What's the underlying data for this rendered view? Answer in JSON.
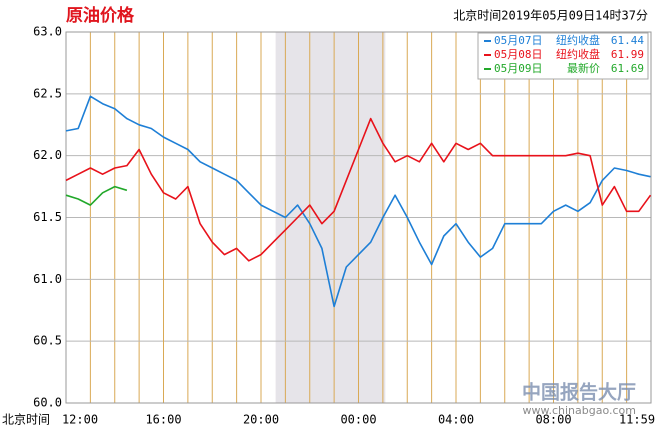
{
  "chart_data": {
    "type": "line",
    "title": "原油价格",
    "subtitle": "北京时间2019年05月09日14时37分",
    "x_axis_label": "北京时间",
    "watermark": "中国报告大厅",
    "watermark_url": "www.chinabgao.com",
    "x": [
      0,
      0.5,
      1,
      1.5,
      2,
      2.5,
      3,
      3.5,
      4,
      4.5,
      5,
      5.5,
      6,
      6.5,
      7,
      7.5,
      8,
      8.5,
      9,
      9.5,
      10,
      10.5,
      11,
      11.5,
      12,
      12.5,
      13,
      13.5,
      14,
      14.5,
      15,
      15.5,
      16,
      16.5,
      17,
      17.5,
      18,
      18.5,
      19,
      19.5,
      20,
      20.5,
      21,
      21.5,
      22,
      22.5,
      23,
      23.5,
      23.98
    ],
    "series": [
      {
        "name": "05月07日",
        "legend_label": "纽约收盘",
        "legend_value": 61.44,
        "color": "#1e7fd6",
        "values": [
          62.2,
          62.22,
          62.48,
          62.42,
          62.38,
          62.3,
          62.25,
          62.22,
          62.15,
          62.1,
          62.05,
          61.95,
          61.9,
          61.85,
          61.8,
          61.7,
          61.6,
          61.55,
          61.5,
          61.6,
          61.45,
          61.25,
          60.78,
          61.1,
          61.2,
          61.3,
          61.5,
          61.68,
          61.5,
          61.3,
          61.12,
          61.35,
          61.45,
          61.3,
          61.18,
          61.25,
          61.45,
          61.45,
          61.45,
          61.45,
          61.55,
          61.6,
          61.55,
          61.62,
          61.8,
          61.9,
          61.88,
          61.85,
          61.83
        ]
      },
      {
        "name": "05月08日",
        "legend_label": "纽约收盘",
        "legend_value": 61.99,
        "color": "#e8121b",
        "values": [
          61.8,
          61.85,
          61.9,
          61.85,
          61.9,
          61.92,
          62.05,
          61.85,
          61.7,
          61.65,
          61.75,
          61.45,
          61.3,
          61.2,
          61.25,
          61.15,
          61.2,
          61.3,
          61.4,
          61.5,
          61.6,
          61.45,
          61.55,
          61.8,
          62.05,
          62.3,
          62.1,
          61.95,
          62.0,
          61.95,
          62.1,
          61.95,
          62.1,
          62.05,
          62.1,
          62.0,
          62.0,
          62.0,
          62.0,
          62.0,
          62.0,
          62.0,
          62.02,
          62.0,
          61.6,
          61.75,
          61.55,
          61.55,
          61.68
        ]
      },
      {
        "name": "05月09日",
        "legend_label": "最新价",
        "legend_value": 61.69,
        "color": "#22a82a",
        "values": [
          61.68,
          61.65,
          61.6,
          61.7,
          61.75,
          61.72,
          null,
          null,
          null,
          null,
          null,
          null,
          null,
          null,
          null,
          null,
          null,
          null,
          null,
          null,
          null,
          null,
          null,
          null,
          null,
          null,
          null,
          null,
          null,
          null,
          null,
          null,
          null,
          null,
          null,
          null,
          null,
          null,
          null,
          null,
          null,
          null,
          null,
          null,
          null,
          null,
          null,
          null,
          null
        ]
      }
    ],
    "xlim": [
      0,
      24
    ],
    "xticks": [
      {
        "value": 0,
        "label": "12:00"
      },
      {
        "value": 4,
        "label": "16:00"
      },
      {
        "value": 8,
        "label": "20:00"
      },
      {
        "value": 12,
        "label": "00:00"
      },
      {
        "value": 16,
        "label": "04:00"
      },
      {
        "value": 20,
        "label": "08:00"
      },
      {
        "value": 24,
        "label": "11:59"
      }
    ],
    "x_minor_ticks": [
      1,
      2,
      3,
      5,
      6,
      7,
      9,
      10,
      11,
      13,
      14,
      15,
      17,
      18,
      19,
      21,
      22,
      23
    ],
    "shade": [
      8.6,
      13.1
    ],
    "ylim": [
      60,
      63
    ],
    "yticks": [
      {
        "value": 60,
        "label": "60.0"
      },
      {
        "value": 60.5,
        "label": "60.5"
      },
      {
        "value": 61,
        "label": "61.0"
      },
      {
        "value": 61.5,
        "label": "61.5"
      },
      {
        "value": 62,
        "label": "62.0"
      },
      {
        "value": 62.5,
        "label": "62.5"
      },
      {
        "value": 63,
        "label": "63.0"
      }
    ],
    "grid": true
  }
}
